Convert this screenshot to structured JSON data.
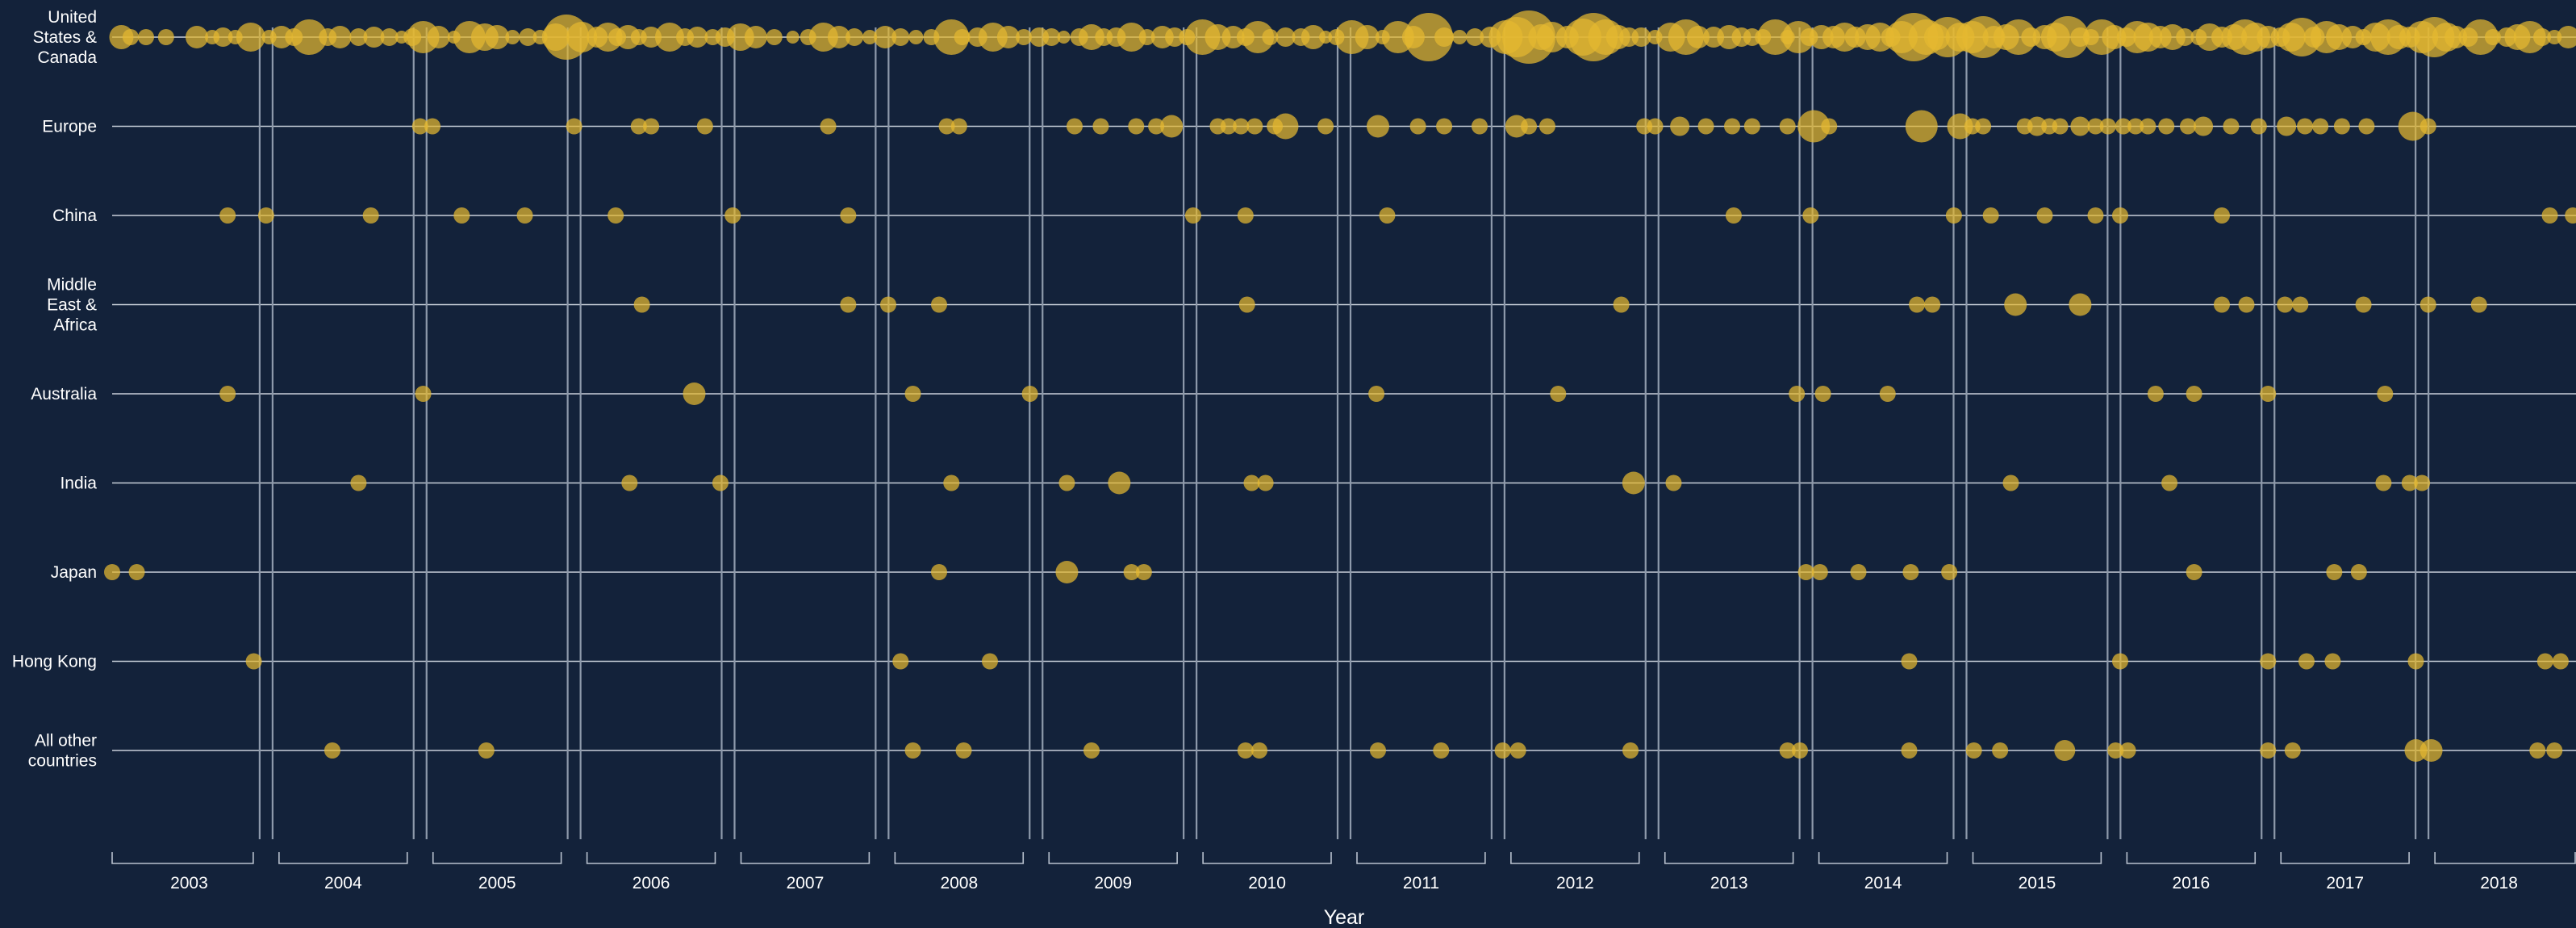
{
  "chart_data": {
    "type": "scatter",
    "title": "",
    "xlabel": "Year",
    "ylabel": "",
    "xlim": [
      2003.0,
      2019.0
    ],
    "grid": true,
    "categories": [
      "United States & Canada",
      "Europe",
      "China",
      "Middle East & Africa",
      "Australia",
      "India",
      "Japan",
      "Hong Kong",
      "All other countries"
    ],
    "row_label_lines": [
      [
        "United",
        "States &",
        "Canada"
      ],
      [
        "Europe"
      ],
      [
        "China"
      ],
      [
        "Middle",
        "East &",
        "Africa"
      ],
      [
        "Australia"
      ],
      [
        "India"
      ],
      [
        "Japan"
      ],
      [
        "Hong Kong"
      ],
      [
        "All other",
        "countries"
      ]
    ],
    "years": [
      "2003",
      "2004",
      "2005",
      "2006",
      "2007",
      "2008",
      "2009",
      "2010",
      "2011",
      "2012",
      "2013",
      "2014",
      "2015",
      "2016",
      "2017",
      "2018"
    ],
    "series": [
      {
        "x": [
          2003.06,
          2003.12,
          2003.22,
          2003.35,
          2003.55,
          2003.65,
          2003.72,
          2003.8,
          2003.9,
          2004.02,
          2004.1,
          2004.18,
          2004.28,
          2004.4,
          2004.48,
          2004.6,
          2004.7,
          2004.8,
          2004.88,
          2004.95,
          2005.02,
          2005.12,
          2005.22,
          2005.32,
          2005.42,
          2005.5,
          2005.6,
          2005.7,
          2005.78,
          2005.88,
          2005.95,
          2006.05,
          2006.15,
          2006.22,
          2006.28,
          2006.35,
          2006.42,
          2006.5,
          2006.62,
          2006.72,
          2006.8,
          2006.9,
          2006.98,
          2007.08,
          2007.18,
          2007.3,
          2007.42,
          2007.52,
          2007.62,
          2007.72,
          2007.82,
          2007.92,
          2008.02,
          2008.12,
          2008.22,
          2008.32,
          2008.45,
          2008.52,
          2008.62,
          2008.72,
          2008.82,
          2008.92,
          2009.02,
          2009.1,
          2009.18,
          2009.28,
          2009.36,
          2009.44,
          2009.52,
          2009.62,
          2009.72,
          2009.82,
          2009.9,
          2009.98,
          2010.08,
          2010.18,
          2010.28,
          2010.36,
          2010.44,
          2010.52,
          2010.62,
          2010.72,
          2010.8,
          2010.88,
          2010.95,
          2011.05,
          2011.15,
          2011.25,
          2011.35,
          2011.45,
          2011.55,
          2011.65,
          2011.75,
          2011.85,
          2011.95,
          2012.05,
          2012.12,
          2012.2,
          2012.28,
          2012.35,
          2012.45,
          2012.55,
          2012.62,
          2012.7,
          2012.78,
          2012.85,
          2012.93,
          2013.02,
          2013.12,
          2013.22,
          2013.3,
          2013.4,
          2013.5,
          2013.58,
          2013.65,
          2013.72,
          2013.8,
          2013.88,
          2013.95,
          2014.02,
          2014.1,
          2014.18,
          2014.25,
          2014.32,
          2014.4,
          2014.48,
          2014.55,
          2014.62,
          2014.7,
          2014.78,
          2014.85,
          2014.92,
          2015.0,
          2015.08,
          2015.15,
          2015.22,
          2015.3,
          2015.38,
          2015.46,
          2015.55,
          2015.62,
          2015.7,
          2015.78,
          2015.85,
          2015.92,
          2016.0,
          2016.08,
          2016.15,
          2016.22,
          2016.3,
          2016.38,
          2016.46,
          2016.55,
          2016.62,
          2016.7,
          2016.78,
          2016.85,
          2016.92,
          2017.0,
          2017.08,
          2017.15,
          2017.22,
          2017.3,
          2017.38,
          2017.46,
          2017.55,
          2017.62,
          2017.7,
          2017.78,
          2017.85,
          2017.92,
          2018.0,
          2018.08,
          2018.16,
          2018.22,
          2018.3,
          2018.38,
          2018.46,
          2018.55,
          2018.62,
          2018.7,
          2018.78,
          2018.86,
          2018.95
        ],
        "r": [
          15,
          10,
          10,
          10,
          14,
          9,
          12,
          9,
          18,
          9,
          14,
          11,
          22,
          11,
          14,
          11,
          13,
          11,
          8,
          11,
          20,
          14,
          8,
          20,
          17,
          15,
          9,
          11,
          9,
          17,
          28,
          19,
          13,
          18,
          11,
          15,
          10,
          13,
          18,
          11,
          13,
          10,
          12,
          17,
          14,
          10,
          8,
          10,
          18,
          14,
          11,
          9,
          14,
          11,
          9,
          10,
          22,
          10,
          12,
          18,
          14,
          10,
          12,
          11,
          8,
          11,
          16,
          11,
          12,
          18,
          10,
          14,
          12,
          10,
          22,
          16,
          14,
          11,
          20,
          10,
          12,
          11,
          15,
          8,
          10,
          21,
          15,
          9,
          20,
          14,
          30,
          12,
          9,
          11,
          13,
          21,
          25,
          33,
          16,
          19,
          14,
          23,
          30,
          22,
          15,
          12,
          12,
          9,
          18,
          22,
          14,
          13,
          15,
          12,
          11,
          10,
          22,
          9,
          20,
          11,
          15,
          14,
          18,
          13,
          16,
          18,
          12,
          20,
          30,
          22,
          16,
          25,
          18,
          20,
          26,
          14,
          16,
          22,
          12,
          15,
          18,
          26,
          12,
          10,
          22,
          15,
          12,
          20,
          18,
          14,
          16,
          11,
          10,
          17,
          13,
          16,
          22,
          18,
          14,
          12,
          18,
          24,
          13,
          20,
          16,
          14,
          10,
          18,
          22,
          15,
          13,
          20,
          25,
          18,
          14,
          12,
          22,
          10,
          12,
          16,
          20,
          11,
          9,
          14
        ]
      },
      {
        "x": [
          2005.0,
          2005.08,
          2006.0,
          2006.42,
          2006.5,
          2006.85,
          2007.65,
          2008.42,
          2008.5,
          2009.25,
          2009.42,
          2009.65,
          2009.78,
          2009.88,
          2010.18,
          2010.25,
          2010.33,
          2010.42,
          2010.55,
          2010.62,
          2010.88,
          2011.22,
          2011.48,
          2011.65,
          2011.88,
          2012.12,
          2012.2,
          2012.32,
          2012.95,
          2013.02,
          2013.18,
          2013.35,
          2013.52,
          2013.65,
          2013.88,
          2014.05,
          2014.15,
          2014.75,
          2015.0,
          2015.08,
          2015.15,
          2015.42,
          2015.5,
          2015.58,
          2015.65,
          2015.78,
          2015.88,
          2015.96,
          2016.06,
          2016.14,
          2016.22,
          2016.34,
          2016.48,
          2016.58,
          2016.76,
          2016.94,
          2017.12,
          2017.24,
          2017.34,
          2017.48,
          2017.64,
          2017.94,
          2018.04
        ],
        "r": [
          10,
          10,
          10,
          10,
          10,
          10,
          10,
          10,
          10,
          10,
          10,
          10,
          10,
          14,
          10,
          10,
          10,
          10,
          10,
          16,
          10,
          14,
          10,
          10,
          10,
          14,
          10,
          10,
          10,
          10,
          12,
          10,
          10,
          10,
          10,
          20,
          10,
          20,
          16,
          10,
          10,
          10,
          12,
          10,
          10,
          12,
          10,
          10,
          10,
          10,
          10,
          10,
          10,
          12,
          10,
          10,
          12,
          10,
          10,
          10,
          10,
          18,
          10
        ]
      },
      {
        "x": [
          2003.75,
          2004.0,
          2004.68,
          2005.27,
          2005.68,
          2006.27,
          2007.03,
          2007.78,
          2010.02,
          2010.36,
          2011.28,
          2013.53,
          2014.03,
          2014.96,
          2015.2,
          2015.55,
          2015.88,
          2016.04,
          2016.7,
          2018.83,
          2018.98
        ],
        "r": [
          10,
          10,
          10,
          10,
          10,
          10,
          10,
          10,
          10,
          10,
          10,
          10,
          10,
          10,
          10,
          10,
          10,
          10,
          10,
          10,
          10
        ]
      },
      {
        "x": [
          2006.44,
          2007.78,
          2008.04,
          2008.37,
          2010.37,
          2012.8,
          2014.72,
          2014.82,
          2015.36,
          2015.78,
          2016.7,
          2016.86,
          2017.11,
          2017.21,
          2017.62,
          2018.04,
          2018.37
        ],
        "r": [
          10,
          10,
          10,
          10,
          10,
          10,
          10,
          10,
          14,
          14,
          10,
          10,
          10,
          10,
          10,
          10,
          10
        ]
      },
      {
        "x": [
          2003.75,
          2005.02,
          2006.78,
          2008.2,
          2008.96,
          2011.21,
          2012.39,
          2013.94,
          2014.11,
          2014.53,
          2016.27,
          2016.52,
          2017.0,
          2017.76
        ],
        "r": [
          10,
          10,
          14,
          10,
          10,
          10,
          10,
          10,
          10,
          10,
          10,
          10,
          10,
          10
        ]
      },
      {
        "x": [
          2004.6,
          2006.36,
          2006.95,
          2008.45,
          2009.2,
          2009.54,
          2010.4,
          2010.49,
          2012.88,
          2013.14,
          2015.33,
          2016.36,
          2017.75,
          2017.92,
          2018.0
        ],
        "r": [
          10,
          10,
          10,
          10,
          10,
          14,
          10,
          10,
          14,
          10,
          10,
          10,
          10,
          10,
          10
        ]
      },
      {
        "x": [
          2003.0,
          2003.16,
          2008.37,
          2009.2,
          2009.62,
          2009.7,
          2014.0,
          2014.09,
          2014.34,
          2014.68,
          2014.93,
          2016.52,
          2017.43,
          2017.59
        ],
        "r": [
          10,
          10,
          10,
          14,
          10,
          10,
          10,
          10,
          10,
          10,
          10,
          10,
          10,
          10
        ]
      },
      {
        "x": [
          2003.92,
          2008.12,
          2008.7,
          2014.67,
          2016.04,
          2017.0,
          2017.25,
          2017.42,
          2017.96,
          2018.8,
          2018.9
        ],
        "r": [
          10,
          10,
          10,
          10,
          10,
          10,
          10,
          10,
          10,
          10,
          10
        ]
      },
      {
        "x": [
          2004.43,
          2005.43,
          2008.2,
          2008.53,
          2009.36,
          2010.36,
          2010.45,
          2011.22,
          2011.63,
          2012.03,
          2012.13,
          2012.86,
          2013.88,
          2013.96,
          2014.67,
          2015.09,
          2015.26,
          2015.68,
          2016.01,
          2016.09,
          2017.0,
          2017.16,
          2017.96,
          2018.06,
          2018.75,
          2018.86
        ],
        "r": [
          10,
          10,
          10,
          10,
          10,
          10,
          10,
          10,
          10,
          10,
          10,
          10,
          10,
          10,
          10,
          10,
          10,
          13,
          10,
          10,
          10,
          10,
          14,
          14,
          10,
          10
        ]
      }
    ]
  }
}
